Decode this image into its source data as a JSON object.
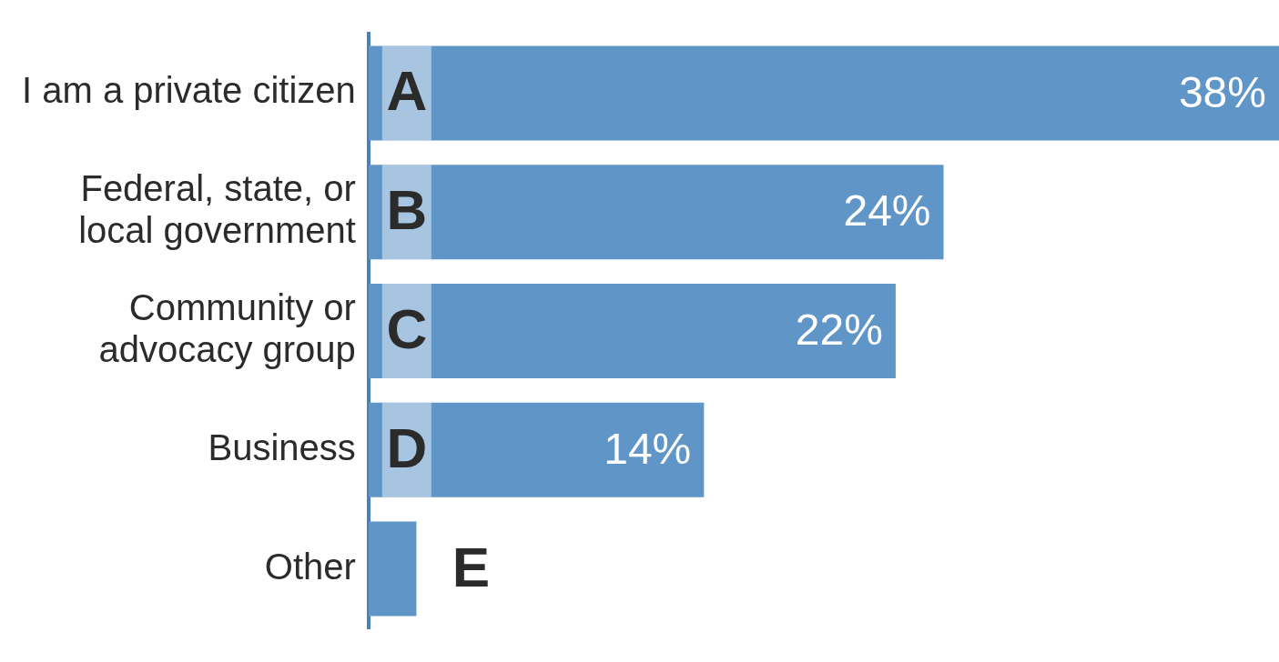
{
  "chart_data": {
    "type": "bar",
    "orientation": "horizontal",
    "categories": [
      "I am a private citizen",
      "Federal, state, or\nlocal government",
      "Community or\nadvocacy group",
      "Business",
      "Other"
    ],
    "values": [
      38,
      24,
      22,
      14,
      2
    ],
    "value_labels": [
      "38%",
      "24%",
      "22%",
      "14%",
      null
    ],
    "color": "#6095c8",
    "xlim": [
      0,
      38
    ],
    "tick_labels": "y",
    "grid": false,
    "legend": false,
    "annotations": [
      "A",
      "B",
      "C",
      "D",
      "E"
    ]
  }
}
